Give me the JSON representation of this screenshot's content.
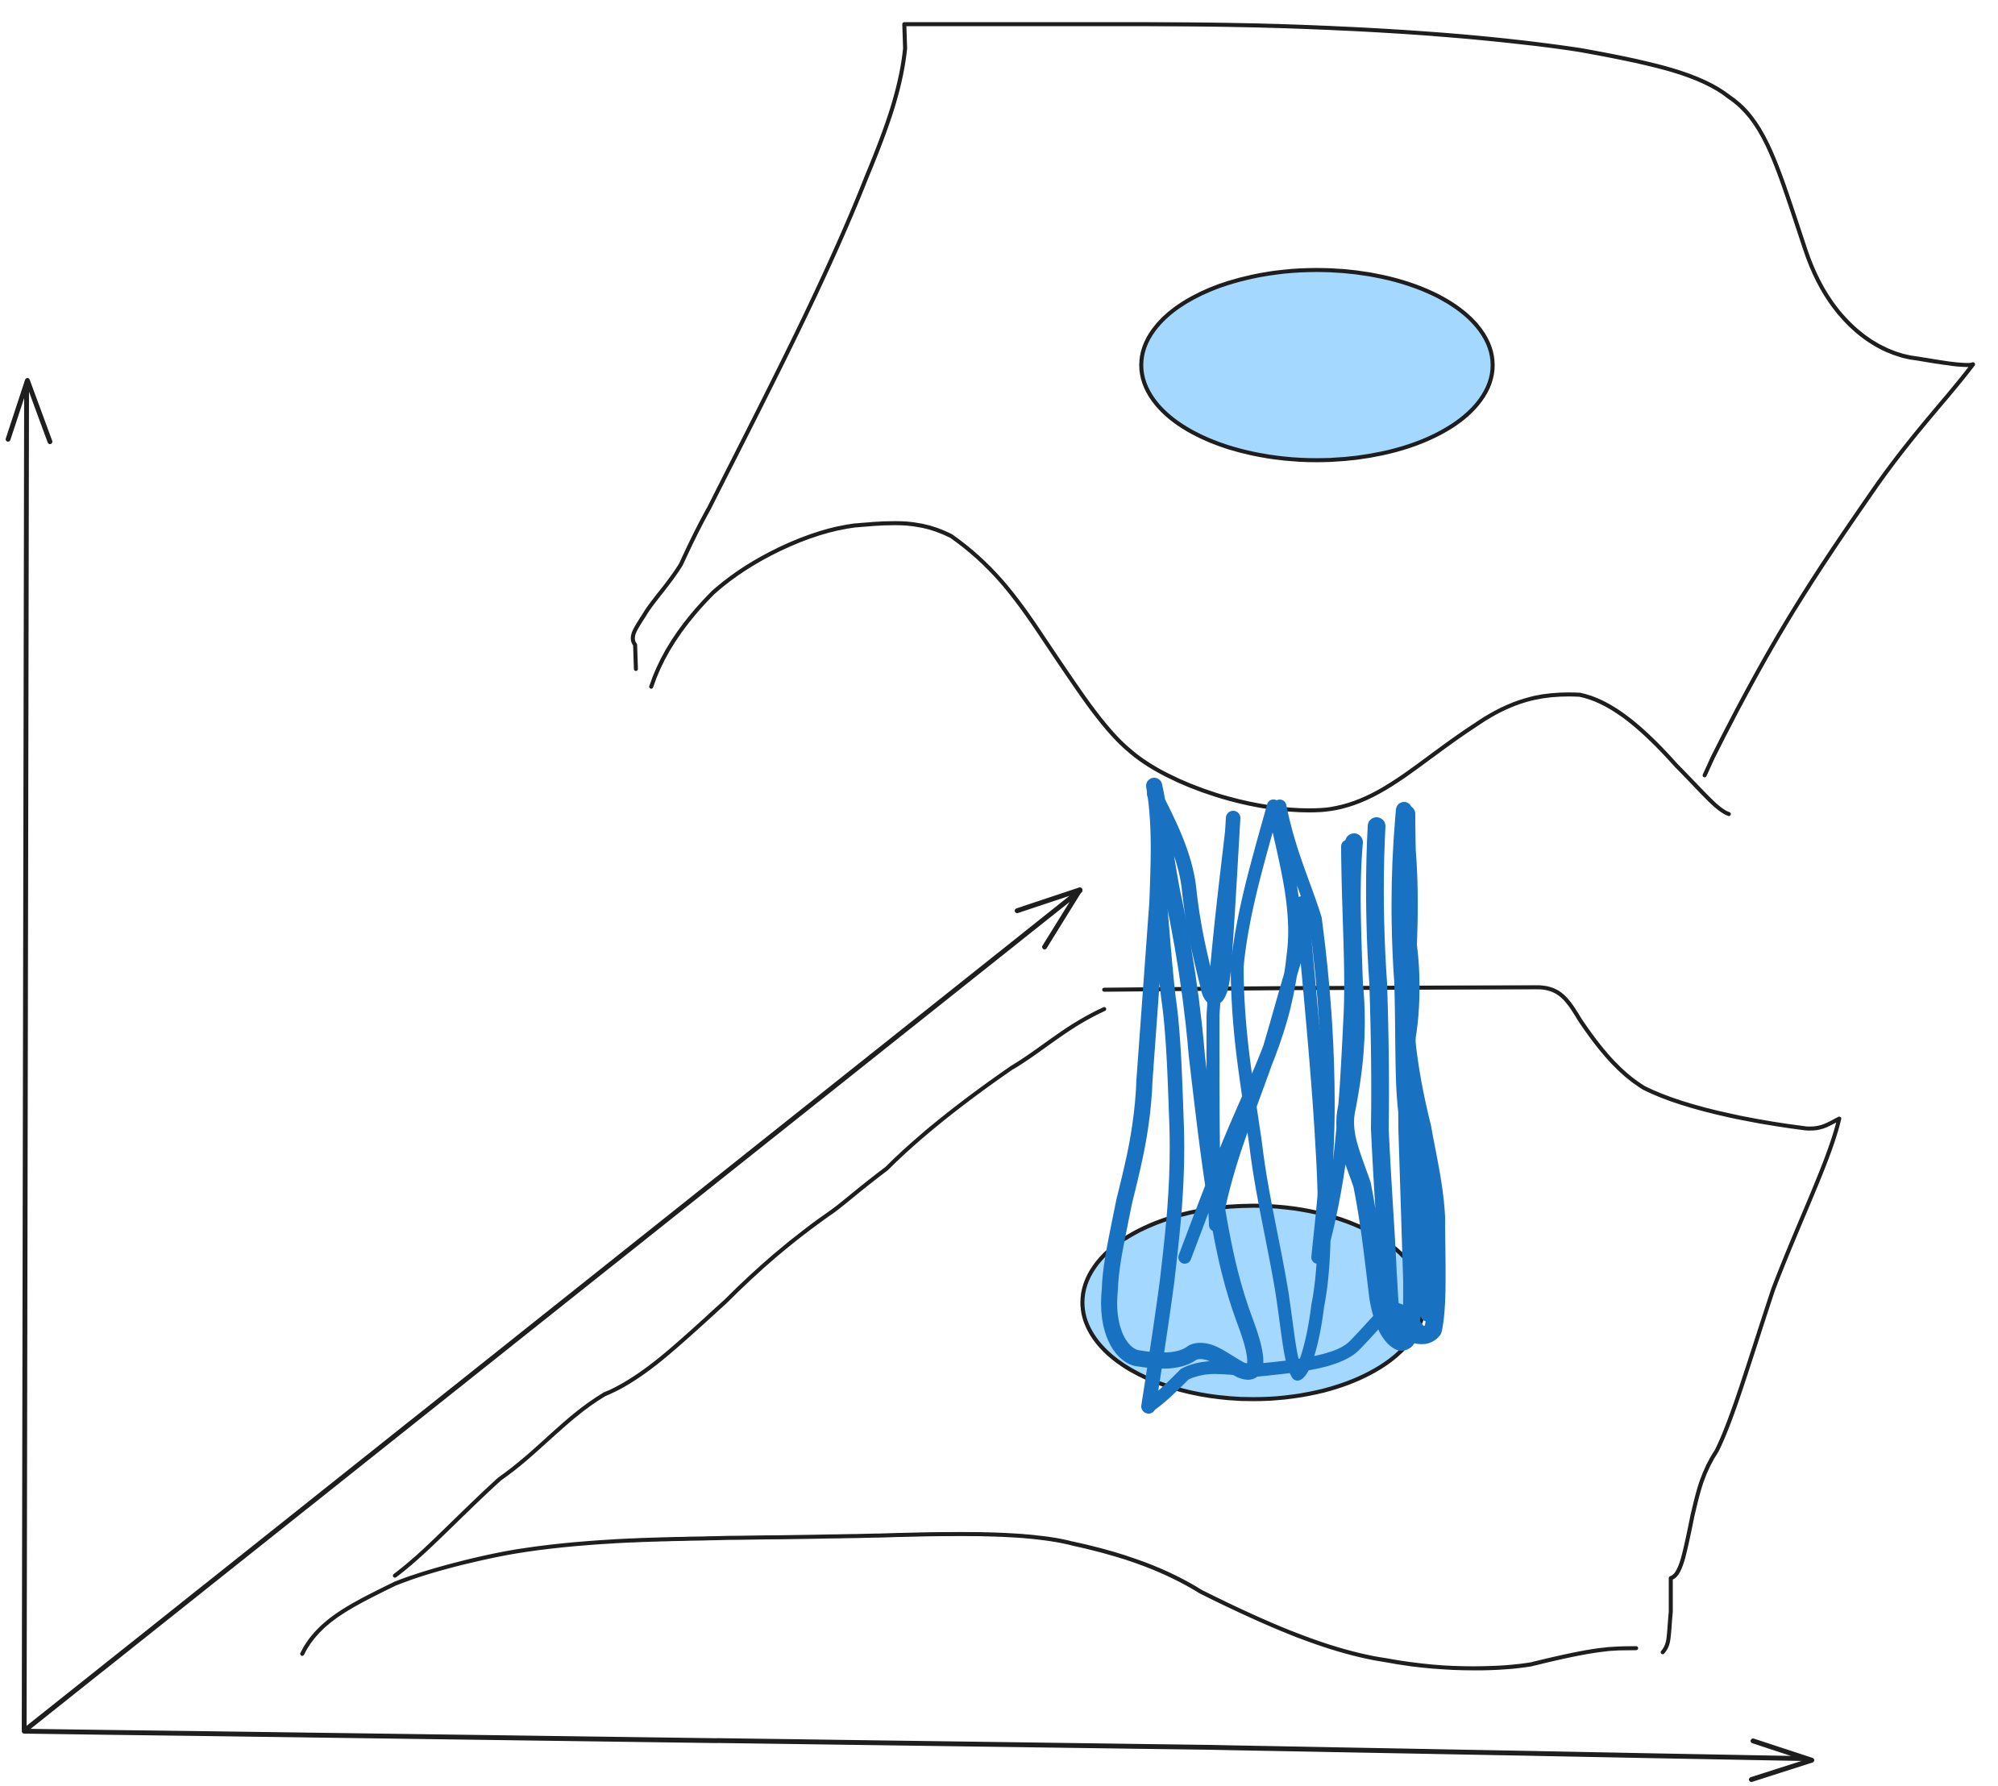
{
  "diagram": {
    "description_free": true,
    "colors": {
      "ink": "#1e1e1e",
      "ellipse_fill": "#a5d8ff",
      "scribble": "#1971c2"
    },
    "elements": {
      "axes": [
        "vertical-axis-arrow",
        "horizontal-axis-arrow",
        "diagonal-axis-arrow"
      ],
      "surfaces": [
        "upper-sheet",
        "lower-sheet"
      ],
      "shapes": [
        "upper-blue-ellipse",
        "lower-blue-ellipse",
        "blue-scribble-tunnel"
      ]
    }
  }
}
